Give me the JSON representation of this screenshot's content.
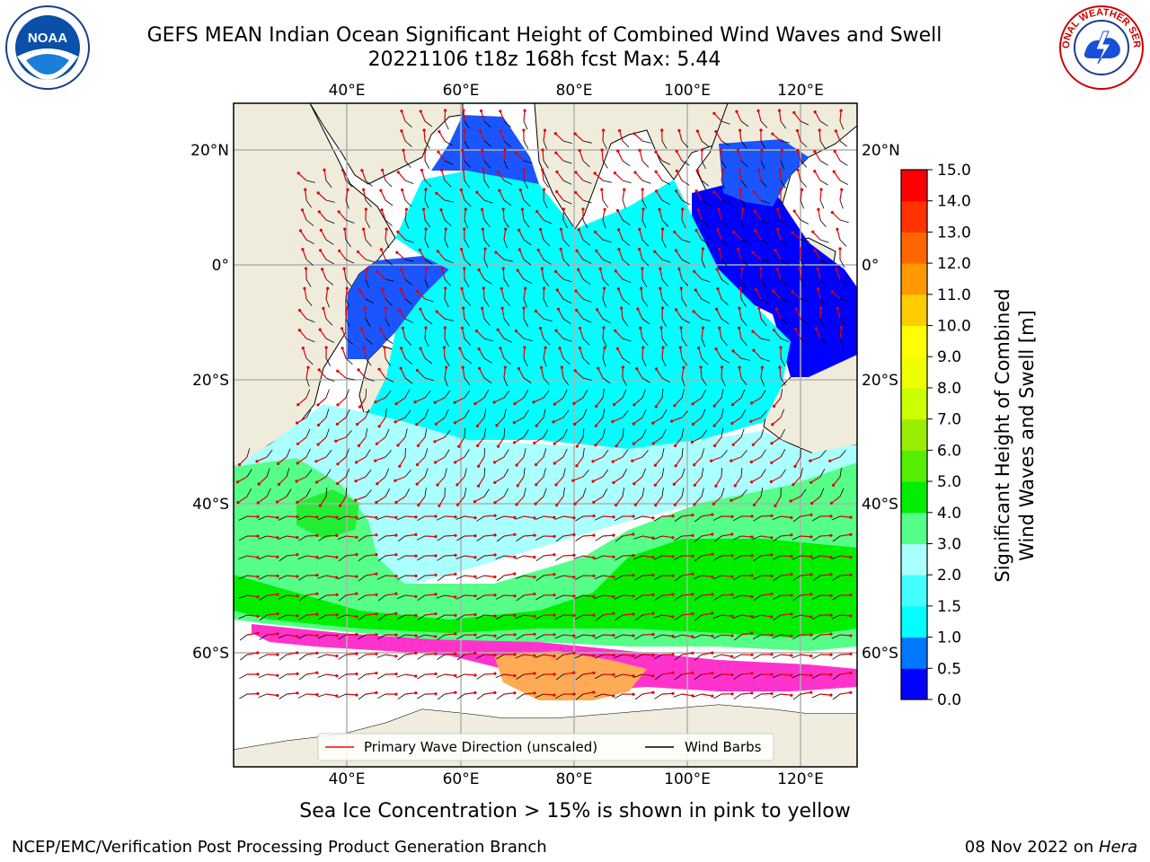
{
  "title_line1": "GEFS MEAN Indian Ocean Significant Height of Combined Wind Waves and Swell",
  "title_line2": "20221106 t18z 168h fcst   Max: 5.44",
  "caption": "Sea Ice Concentration > 15% is shown in pink to yellow",
  "footer_left": "NCEP/EMC/Verification Post Processing Product Generation Branch",
  "footer_right_date": "08 Nov 2022 on ",
  "footer_right_host": "Hera",
  "logos": {
    "noaa_text": "NOAA",
    "nws_text": "NATIONAL WEATHER SERVICE"
  },
  "map": {
    "lon_ticks": [
      "40°E",
      "60°E",
      "80°E",
      "100°E",
      "120°E"
    ],
    "lat_ticks": [
      "20°N",
      "0°",
      "20°S",
      "40°S",
      "60°S"
    ],
    "legend": {
      "wave_label": "Primary Wave Direction (unscaled)",
      "wind_label": "Wind Barbs",
      "wave_color": "#ff0000",
      "wind_color": "#000000"
    },
    "land_color": "#efecdc",
    "ocean_color": "#ffffff",
    "grid_color": "#b0b0b0"
  },
  "colorbar": {
    "label_line1": "Significant Height of Combined",
    "label_line2": "Wind Waves and Swell [m]",
    "ticks": [
      "15.0",
      "14.0",
      "13.0",
      "12.0",
      "11.0",
      "10.0",
      "9.0",
      "8.0",
      "7.0",
      "6.0",
      "5.0",
      "4.0",
      "3.0",
      "2.0",
      "1.5",
      "1.0",
      "0.5",
      "0.0"
    ],
    "colors_bottom_to_top": [
      "#0000ff",
      "#0077ff",
      "#00ffff",
      "#44ffff",
      "#aaffff",
      "#55ff88",
      "#00ee00",
      "#55ee00",
      "#99ee00",
      "#ccff00",
      "#eeff00",
      "#ffff00",
      "#ffcc00",
      "#ff9900",
      "#ff6600",
      "#ff3300",
      "#ff0000"
    ]
  },
  "chart_data": {
    "type": "heatmap",
    "title": "GEFS MEAN Indian Ocean Significant Height of Combined Wind Waves and Swell",
    "subtitle": "20221106 t18z 168h fcst   Max: 5.44",
    "max_value": 5.44,
    "units": "m",
    "lon_range": [
      20,
      130
    ],
    "lat_range": [
      -75,
      27
    ],
    "colorbar_levels": [
      0.0,
      0.5,
      1.0,
      1.5,
      2.0,
      3.0,
      4.0,
      5.0,
      6.0,
      7.0,
      8.0,
      9.0,
      10.0,
      11.0,
      12.0,
      13.0,
      14.0,
      15.0
    ]
  }
}
